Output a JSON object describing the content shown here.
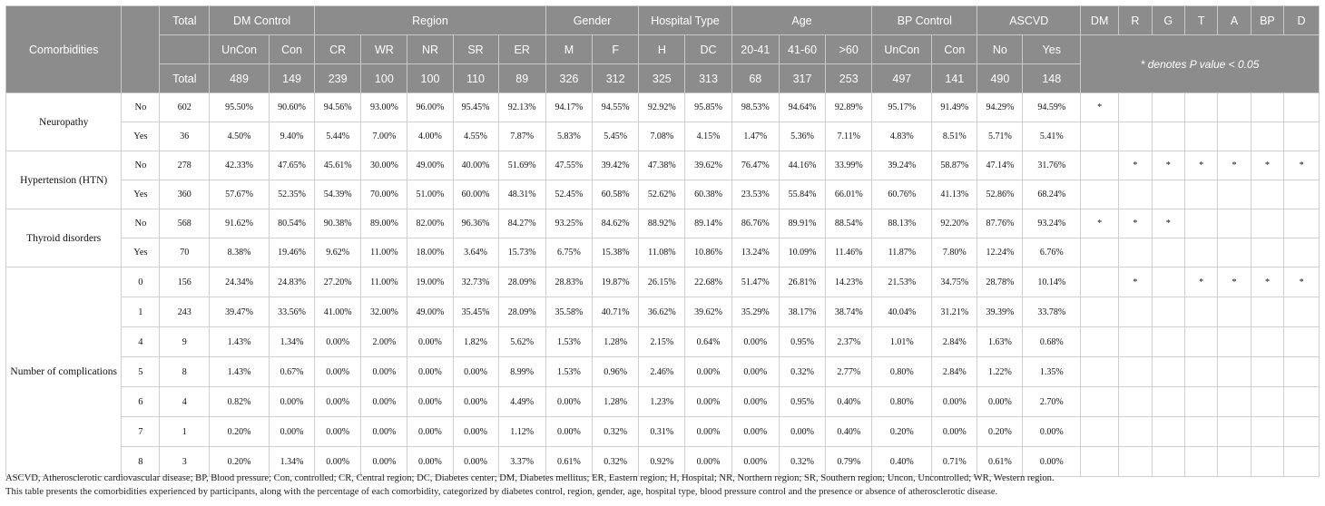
{
  "header": {
    "comorbidities": "Comorbidities",
    "total": "Total",
    "groups": [
      "DM Control",
      "Region",
      "Gender",
      "Hospital Type",
      "Age",
      "BP Control",
      "ASCVD"
    ],
    "pv_labels": [
      "DM",
      "R",
      "G",
      "T",
      "A",
      "BP",
      "D"
    ],
    "note": "* denotes P value < 0.05",
    "subs": [
      "UnCon",
      "Con",
      "CR",
      "WR",
      "NR",
      "SR",
      "ER",
      "M",
      "F",
      "H",
      "DC",
      "20-41",
      "41-60",
      ">60",
      "UnCon",
      "Con",
      "No",
      "Yes"
    ],
    "totals_label": "Total",
    "totals": [
      "489",
      "149",
      "239",
      "100",
      "100",
      "110",
      "89",
      "326",
      "312",
      "325",
      "313",
      "68",
      "317",
      "253",
      "497",
      "141",
      "490",
      "148"
    ]
  },
  "sections": [
    {
      "label": "Neuropathy",
      "rows": [
        {
          "level": "No",
          "total": "602",
          "values": [
            "95.50%",
            "90.60%",
            "94.56%",
            "93.00%",
            "96.00%",
            "95.45%",
            "92.13%",
            "94.17%",
            "94.55%",
            "92.92%",
            "95.85%",
            "98.53%",
            "94.64%",
            "92.89%",
            "95.17%",
            "91.49%",
            "94.29%",
            "94.59%"
          ],
          "p": [
            "*",
            "",
            "",
            "",
            "",
            "",
            ""
          ]
        },
        {
          "level": "Yes",
          "total": "36",
          "values": [
            "4.50%",
            "9.40%",
            "5.44%",
            "7.00%",
            "4.00%",
            "4.55%",
            "7.87%",
            "5.83%",
            "5.45%",
            "7.08%",
            "4.15%",
            "1.47%",
            "5.36%",
            "7.11%",
            "4.83%",
            "8.51%",
            "5.71%",
            "5.41%"
          ],
          "p": [
            "",
            "",
            "",
            "",
            "",
            "",
            ""
          ]
        }
      ]
    },
    {
      "label": "Hypertension (HTN)",
      "rows": [
        {
          "level": "No",
          "total": "278",
          "values": [
            "42.33%",
            "47.65%",
            "45.61%",
            "30.00%",
            "49.00%",
            "40.00%",
            "51.69%",
            "47.55%",
            "39.42%",
            "47.38%",
            "39.62%",
            "76.47%",
            "44.16%",
            "33.99%",
            "39.24%",
            "58.87%",
            "47.14%",
            "31.76%"
          ],
          "p": [
            "",
            "*",
            "*",
            "*",
            "*",
            "*",
            "*"
          ]
        },
        {
          "level": "Yes",
          "total": "360",
          "values": [
            "57.67%",
            "52.35%",
            "54.39%",
            "70.00%",
            "51.00%",
            "60.00%",
            "48.31%",
            "52.45%",
            "60.58%",
            "52.62%",
            "60.38%",
            "23.53%",
            "55.84%",
            "66.01%",
            "60.76%",
            "41.13%",
            "52.86%",
            "68.24%"
          ],
          "p": [
            "",
            "",
            "",
            "",
            "",
            "",
            ""
          ]
        }
      ]
    },
    {
      "label": "Thyroid disorders",
      "rows": [
        {
          "level": "No",
          "total": "568",
          "values": [
            "91.62%",
            "80.54%",
            "90.38%",
            "89.00%",
            "82.00%",
            "96.36%",
            "84.27%",
            "93.25%",
            "84.62%",
            "88.92%",
            "89.14%",
            "86.76%",
            "89.91%",
            "88.54%",
            "88.13%",
            "92.20%",
            "87.76%",
            "93.24%"
          ],
          "p": [
            "*",
            "*",
            "*",
            "",
            "",
            "",
            ""
          ]
        },
        {
          "level": "Yes",
          "total": "70",
          "values": [
            "8.38%",
            "19.46%",
            "9.62%",
            "11.00%",
            "18.00%",
            "3.64%",
            "15.73%",
            "6.75%",
            "15.38%",
            "11.08%",
            "10.86%",
            "13.24%",
            "10.09%",
            "11.46%",
            "11.87%",
            "7.80%",
            "12.24%",
            "6.76%"
          ],
          "p": [
            "",
            "",
            "",
            "",
            "",
            "",
            ""
          ]
        }
      ]
    },
    {
      "label": "Number of complications",
      "rows": [
        {
          "level": "0",
          "total": "156",
          "values": [
            "24.34%",
            "24.83%",
            "27.20%",
            "11.00%",
            "19.00%",
            "32.73%",
            "28.09%",
            "28.83%",
            "19.87%",
            "26.15%",
            "22.68%",
            "51.47%",
            "26.81%",
            "14.23%",
            "21.53%",
            "34.75%",
            "28.78%",
            "10.14%"
          ],
          "p": [
            "",
            "*",
            "",
            "*",
            "*",
            "*",
            "*"
          ]
        },
        {
          "level": "1",
          "total": "243",
          "values": [
            "39.47%",
            "33.56%",
            "41.00%",
            "32.00%",
            "49.00%",
            "35.45%",
            "28.09%",
            "35.58%",
            "40.71%",
            "36.62%",
            "39.62%",
            "35.29%",
            "38.17%",
            "38.74%",
            "40.04%",
            "31.21%",
            "39.39%",
            "33.78%"
          ],
          "p": [
            "",
            "",
            "",
            "",
            "",
            "",
            ""
          ]
        },
        {
          "level": "4",
          "total": "9",
          "values": [
            "1.43%",
            "1.34%",
            "0.00%",
            "2.00%",
            "0.00%",
            "1.82%",
            "5.62%",
            "1.53%",
            "1.28%",
            "2.15%",
            "0.64%",
            "0.00%",
            "0.95%",
            "2.37%",
            "1.01%",
            "2.84%",
            "1.63%",
            "0.68%"
          ],
          "p": [
            "",
            "",
            "",
            "",
            "",
            "",
            ""
          ]
        },
        {
          "level": "5",
          "total": "8",
          "values": [
            "1.43%",
            "0.67%",
            "0.00%",
            "0.00%",
            "0.00%",
            "0.00%",
            "8.99%",
            "1.53%",
            "0.96%",
            "2.46%",
            "0.00%",
            "0.00%",
            "0.32%",
            "2.77%",
            "0.80%",
            "2.84%",
            "1.22%",
            "1.35%"
          ],
          "p": [
            "",
            "",
            "",
            "",
            "",
            "",
            ""
          ]
        },
        {
          "level": "6",
          "total": "4",
          "values": [
            "0.82%",
            "0.00%",
            "0.00%",
            "0.00%",
            "0.00%",
            "0.00%",
            "4.49%",
            "0.00%",
            "1.28%",
            "1.23%",
            "0.00%",
            "0.00%",
            "0.95%",
            "0.40%",
            "0.80%",
            "0.00%",
            "0.00%",
            "2.70%"
          ],
          "p": [
            "",
            "",
            "",
            "",
            "",
            "",
            ""
          ]
        },
        {
          "level": "7",
          "total": "1",
          "values": [
            "0.20%",
            "0.00%",
            "0.00%",
            "0.00%",
            "0.00%",
            "0.00%",
            "1.12%",
            "0.00%",
            "0.32%",
            "0.31%",
            "0.00%",
            "0.00%",
            "0.00%",
            "0.40%",
            "0.20%",
            "0.00%",
            "0.20%",
            "0.00%"
          ],
          "p": [
            "",
            "",
            "",
            "",
            "",
            "",
            ""
          ]
        },
        {
          "level": "8",
          "total": "3",
          "values": [
            "0.20%",
            "1.34%",
            "0.00%",
            "0.00%",
            "0.00%",
            "0.00%",
            "3.37%",
            "0.61%",
            "0.32%",
            "0.92%",
            "0.00%",
            "0.00%",
            "0.32%",
            "0.79%",
            "0.40%",
            "0.71%",
            "0.61%",
            "0.00%"
          ],
          "p": [
            "",
            "",
            "",
            "",
            "",
            "",
            ""
          ]
        }
      ]
    }
  ],
  "footer": {
    "abbreviations": "ASCVD, Atherosclerotic cardiovascular disease; BP, Blood pressure; Con, controlled; CR, Central region; DC, Diabetes center; DM, Diabetes mellitus; ER, Eastern region; H, Hospital; NR, Northern region; SR, Southern region; Uncon, Uncontrolled; WR, Western region.",
    "description": "This table presents the comorbidities experienced by participants, along with the percentage of each comorbidity, categorized by diabetes control, region, gender, age, hospital type, blood pressure control and the presence or absence of atherosclerotic disease."
  }
}
